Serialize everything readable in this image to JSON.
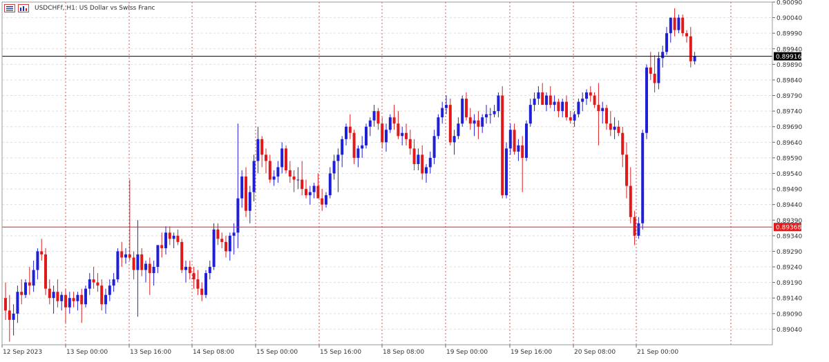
{
  "header": {
    "symbol_line": "USDCHFf, H1:  US Dollar vs Swiss Franc",
    "icons": [
      "chart-menu-icon",
      "chart-properties-icon"
    ]
  },
  "colors": {
    "bull": "#1f1fd6",
    "bear": "#e0191b",
    "price_line_current": "#000000",
    "price_line_marked": "#e0191b",
    "grid_vertical": "#d45050",
    "grid_horizontal": "#dddddd",
    "axis_text": "#333333"
  },
  "chart_data": {
    "type": "candlestick",
    "symbol": "USDCHFf",
    "timeframe": "H1",
    "title": "USDCHFf, H1:  US Dollar vs Swiss Franc",
    "y_axis": {
      "ylim": [
        0.8899,
        0.9009
      ],
      "tick_labels": [
        "0.90090",
        "0.90040",
        "0.89990",
        "0.89940",
        "0.89890",
        "0.89840",
        "0.89790",
        "0.89740",
        "0.89690",
        "0.89640",
        "0.89590",
        "0.89540",
        "0.89490",
        "0.89440",
        "0.89390",
        "0.89340",
        "0.89290",
        "0.89240",
        "0.89190",
        "0.89140",
        "0.89090",
        "0.89040"
      ]
    },
    "x_axis": {
      "tick_labels": [
        "12 Sep 2023",
        "13 Sep 00:00",
        "13 Sep 16:00",
        "14 Sep 08:00",
        "15 Sep 00:00",
        "15 Sep 16:00",
        "18 Sep 08:00",
        "19 Sep 00:00",
        "19 Sep 16:00",
        "20 Sep 08:00",
        "21 Sep 00:00"
      ]
    },
    "price_labels": {
      "current": {
        "value": 0.89916,
        "label": "0.89916"
      },
      "marked": {
        "value": 0.89368,
        "label": "0.89368"
      }
    },
    "grid": true,
    "candles": [
      [
        0.8914,
        0.8919,
        0.8907,
        0.891
      ],
      [
        0.891,
        0.8915,
        0.89,
        0.8907
      ],
      [
        0.8907,
        0.8912,
        0.8902,
        0.8909
      ],
      [
        0.8909,
        0.8918,
        0.8906,
        0.8916
      ],
      [
        0.8916,
        0.892,
        0.8912,
        0.8915
      ],
      [
        0.8915,
        0.892,
        0.8914,
        0.8919
      ],
      [
        0.8919,
        0.8924,
        0.8915,
        0.8918
      ],
      [
        0.8918,
        0.8926,
        0.8916,
        0.8923
      ],
      [
        0.8923,
        0.893,
        0.892,
        0.8929
      ],
      [
        0.8929,
        0.8933,
        0.8926,
        0.8928
      ],
      [
        0.8928,
        0.893,
        0.8915,
        0.8917
      ],
      [
        0.8917,
        0.892,
        0.8912,
        0.8914
      ],
      [
        0.8914,
        0.8918,
        0.8909,
        0.8916
      ],
      [
        0.8916,
        0.892,
        0.8911,
        0.8913
      ],
      [
        0.8913,
        0.8916,
        0.891,
        0.8915
      ],
      [
        0.8915,
        0.8917,
        0.8906,
        0.8911
      ],
      [
        0.8911,
        0.8916,
        0.8909,
        0.8914
      ],
      [
        0.8914,
        0.8916,
        0.8911,
        0.8913
      ],
      [
        0.8913,
        0.8916,
        0.891,
        0.8915
      ],
      [
        0.8915,
        0.8917,
        0.8906,
        0.8912
      ],
      [
        0.8912,
        0.8918,
        0.8911,
        0.8917
      ],
      [
        0.8917,
        0.8922,
        0.8915,
        0.892
      ],
      [
        0.892,
        0.8924,
        0.8917,
        0.8919
      ],
      [
        0.8919,
        0.8922,
        0.8916,
        0.8918
      ],
      [
        0.8918,
        0.892,
        0.891,
        0.8912
      ],
      [
        0.8912,
        0.8917,
        0.8909,
        0.8915
      ],
      [
        0.8915,
        0.892,
        0.8913,
        0.8918
      ],
      [
        0.8918,
        0.8922,
        0.8916,
        0.892
      ],
      [
        0.892,
        0.893,
        0.8919,
        0.8929
      ],
      [
        0.8929,
        0.8932,
        0.8924,
        0.8927
      ],
      [
        0.8927,
        0.893,
        0.8925,
        0.8928
      ],
      [
        0.8928,
        0.8952,
        0.8926,
        0.8927
      ],
      [
        0.8927,
        0.8929,
        0.892,
        0.8923
      ],
      [
        0.8923,
        0.8939,
        0.8908,
        0.8928
      ],
      [
        0.8928,
        0.893,
        0.8921,
        0.8923
      ],
      [
        0.8923,
        0.8926,
        0.8919,
        0.8925
      ],
      [
        0.8925,
        0.8927,
        0.8915,
        0.8922
      ],
      [
        0.8922,
        0.8926,
        0.8918,
        0.8924
      ],
      [
        0.8924,
        0.893,
        0.8922,
        0.8931
      ],
      [
        0.8931,
        0.8935,
        0.8927,
        0.893
      ],
      [
        0.893,
        0.8937,
        0.8928,
        0.8935
      ],
      [
        0.8935,
        0.8937,
        0.8931,
        0.8933
      ],
      [
        0.8933,
        0.8935,
        0.893,
        0.8934
      ],
      [
        0.8934,
        0.8936,
        0.8931,
        0.8932
      ],
      [
        0.8932,
        0.8933,
        0.8922,
        0.8923
      ],
      [
        0.8923,
        0.8926,
        0.8919,
        0.8924
      ],
      [
        0.8924,
        0.8926,
        0.892,
        0.8922
      ],
      [
        0.8922,
        0.8924,
        0.8917,
        0.892
      ],
      [
        0.892,
        0.8923,
        0.8915,
        0.8917
      ],
      [
        0.8917,
        0.8919,
        0.8913,
        0.8915
      ],
      [
        0.8915,
        0.8923,
        0.8914,
        0.8922
      ],
      [
        0.8922,
        0.8926,
        0.892,
        0.8924
      ],
      [
        0.8924,
        0.8938,
        0.8923,
        0.8936
      ],
      [
        0.8936,
        0.8938,
        0.8931,
        0.8933
      ],
      [
        0.8933,
        0.8935,
        0.893,
        0.8932
      ],
      [
        0.8932,
        0.8934,
        0.8927,
        0.8929
      ],
      [
        0.8929,
        0.8935,
        0.8926,
        0.8934
      ],
      [
        0.8934,
        0.8938,
        0.8928,
        0.8935
      ],
      [
        0.8935,
        0.897,
        0.893,
        0.8946
      ],
      [
        0.8946,
        0.8955,
        0.8943,
        0.8953
      ],
      [
        0.8953,
        0.8956,
        0.894,
        0.8942
      ],
      [
        0.8942,
        0.895,
        0.8938,
        0.8948
      ],
      [
        0.8948,
        0.896,
        0.8945,
        0.8958
      ],
      [
        0.8958,
        0.8969,
        0.8954,
        0.8965
      ],
      [
        0.8965,
        0.8966,
        0.8956,
        0.896
      ],
      [
        0.896,
        0.8962,
        0.8954,
        0.8958
      ],
      [
        0.8958,
        0.896,
        0.8951,
        0.8952
      ],
      [
        0.8952,
        0.8955,
        0.895,
        0.8953
      ],
      [
        0.8953,
        0.8958,
        0.8951,
        0.8956
      ],
      [
        0.8956,
        0.8964,
        0.8954,
        0.8962
      ],
      [
        0.8962,
        0.8963,
        0.8954,
        0.8955
      ],
      [
        0.8955,
        0.8958,
        0.8951,
        0.8953
      ],
      [
        0.8953,
        0.8955,
        0.8948,
        0.8952
      ],
      [
        0.8952,
        0.8956,
        0.8949,
        0.8952
      ],
      [
        0.8952,
        0.8958,
        0.8947,
        0.8949
      ],
      [
        0.8949,
        0.8952,
        0.8946,
        0.8947
      ],
      [
        0.8947,
        0.895,
        0.8944,
        0.8948
      ],
      [
        0.8948,
        0.8951,
        0.8946,
        0.895
      ],
      [
        0.895,
        0.8954,
        0.8947,
        0.8946
      ],
      [
        0.8946,
        0.8949,
        0.8942,
        0.8944
      ],
      [
        0.8944,
        0.8948,
        0.8943,
        0.8947
      ],
      [
        0.8947,
        0.8956,
        0.8946,
        0.8954
      ],
      [
        0.8954,
        0.896,
        0.8952,
        0.8958
      ],
      [
        0.8958,
        0.8962,
        0.8948,
        0.896
      ],
      [
        0.896,
        0.8966,
        0.8956,
        0.8965
      ],
      [
        0.8965,
        0.897,
        0.8963,
        0.8969
      ],
      [
        0.8969,
        0.8973,
        0.8965,
        0.8967
      ],
      [
        0.8967,
        0.8968,
        0.8957,
        0.8959
      ],
      [
        0.8959,
        0.8963,
        0.8956,
        0.8962
      ],
      [
        0.8962,
        0.8966,
        0.8959,
        0.8963
      ],
      [
        0.8963,
        0.897,
        0.8962,
        0.8969
      ],
      [
        0.8969,
        0.8972,
        0.8966,
        0.8971
      ],
      [
        0.8971,
        0.8976,
        0.8969,
        0.8974
      ],
      [
        0.8974,
        0.8975,
        0.8968,
        0.897
      ],
      [
        0.897,
        0.8972,
        0.8962,
        0.8964
      ],
      [
        0.8964,
        0.897,
        0.8961,
        0.8968
      ],
      [
        0.8968,
        0.8973,
        0.8967,
        0.8972
      ],
      [
        0.8972,
        0.8976,
        0.8968,
        0.897
      ],
      [
        0.897,
        0.8974,
        0.8965,
        0.8966
      ],
      [
        0.8966,
        0.8969,
        0.8963,
        0.8967
      ],
      [
        0.8967,
        0.897,
        0.8963,
        0.8965
      ],
      [
        0.8965,
        0.8968,
        0.896,
        0.8962
      ],
      [
        0.8962,
        0.8965,
        0.8955,
        0.8957
      ],
      [
        0.8957,
        0.8962,
        0.8955,
        0.896
      ],
      [
        0.896,
        0.8963,
        0.8952,
        0.8954
      ],
      [
        0.8954,
        0.8957,
        0.8951,
        0.8956
      ],
      [
        0.8956,
        0.8961,
        0.8954,
        0.8959
      ],
      [
        0.8959,
        0.8968,
        0.8957,
        0.8966
      ],
      [
        0.8966,
        0.8973,
        0.8965,
        0.8972
      ],
      [
        0.8972,
        0.8977,
        0.897,
        0.8975
      ],
      [
        0.8975,
        0.8979,
        0.8973,
        0.8976
      ],
      [
        0.8976,
        0.8978,
        0.8963,
        0.8964
      ],
      [
        0.8964,
        0.8968,
        0.896,
        0.8966
      ],
      [
        0.8966,
        0.8972,
        0.8965,
        0.897
      ],
      [
        0.897,
        0.8979,
        0.8969,
        0.8978
      ],
      [
        0.8978,
        0.898,
        0.8971,
        0.8972
      ],
      [
        0.8972,
        0.8975,
        0.8968,
        0.897
      ],
      [
        0.897,
        0.8973,
        0.8966,
        0.8971
      ],
      [
        0.8971,
        0.8974,
        0.8965,
        0.8969
      ],
      [
        0.8969,
        0.8973,
        0.8967,
        0.8972
      ],
      [
        0.8972,
        0.8976,
        0.897,
        0.8973
      ],
      [
        0.8973,
        0.8975,
        0.897,
        0.8973
      ],
      [
        0.8973,
        0.8976,
        0.8972,
        0.8974
      ],
      [
        0.8974,
        0.898,
        0.8972,
        0.8979
      ],
      [
        0.8979,
        0.8982,
        0.8946,
        0.8947
      ],
      [
        0.8947,
        0.8964,
        0.8946,
        0.8962
      ],
      [
        0.8962,
        0.897,
        0.896,
        0.8968
      ],
      [
        0.8968,
        0.897,
        0.896,
        0.8961
      ],
      [
        0.8961,
        0.8965,
        0.8958,
        0.8963
      ],
      [
        0.8963,
        0.8966,
        0.8948,
        0.8959
      ],
      [
        0.8959,
        0.8971,
        0.8958,
        0.897
      ],
      [
        0.897,
        0.8978,
        0.8969,
        0.8976
      ],
      [
        0.8976,
        0.898,
        0.8974,
        0.8978
      ],
      [
        0.8978,
        0.8982,
        0.8976,
        0.898
      ],
      [
        0.898,
        0.8983,
        0.8977,
        0.8976
      ],
      [
        0.8976,
        0.898,
        0.8974,
        0.8979
      ],
      [
        0.8979,
        0.8982,
        0.8975,
        0.8976
      ],
      [
        0.8976,
        0.8979,
        0.8974,
        0.8977
      ],
      [
        0.8977,
        0.8978,
        0.8972,
        0.8974
      ],
      [
        0.8974,
        0.8978,
        0.8972,
        0.8977
      ],
      [
        0.8977,
        0.8979,
        0.8971,
        0.8972
      ],
      [
        0.8972,
        0.8974,
        0.897,
        0.8971
      ],
      [
        0.8971,
        0.8974,
        0.8969,
        0.8973
      ],
      [
        0.8973,
        0.8978,
        0.8972,
        0.8977
      ],
      [
        0.8977,
        0.898,
        0.8974,
        0.8978
      ],
      [
        0.8978,
        0.8981,
        0.8976,
        0.898
      ],
      [
        0.898,
        0.8982,
        0.8977,
        0.8979
      ],
      [
        0.8979,
        0.898,
        0.8975,
        0.8976
      ],
      [
        0.8976,
        0.8983,
        0.8963,
        0.8974
      ],
      [
        0.8974,
        0.8977,
        0.897,
        0.8975
      ],
      [
        0.8975,
        0.8976,
        0.8968,
        0.897
      ],
      [
        0.897,
        0.8974,
        0.8966,
        0.8968
      ],
      [
        0.8968,
        0.8972,
        0.8965,
        0.8969
      ],
      [
        0.8969,
        0.8971,
        0.8966,
        0.8967
      ],
      [
        0.8967,
        0.8969,
        0.8956,
        0.896
      ],
      [
        0.896,
        0.8964,
        0.8946,
        0.895
      ],
      [
        0.895,
        0.8956,
        0.8938,
        0.894
      ],
      [
        0.894,
        0.8942,
        0.8931,
        0.8934
      ],
      [
        0.8934,
        0.894,
        0.8933,
        0.8938
      ],
      [
        0.8938,
        0.8968,
        0.8936,
        0.8967
      ],
      [
        0.8967,
        0.8989,
        0.8965,
        0.8988
      ],
      [
        0.8988,
        0.8993,
        0.8984,
        0.8986
      ],
      [
        0.8986,
        0.8992,
        0.898,
        0.8983
      ],
      [
        0.8983,
        0.8993,
        0.8981,
        0.8991
      ],
      [
        0.8991,
        0.8995,
        0.8988,
        0.8993
      ],
      [
        0.8993,
        0.9001,
        0.8992,
        0.8999
      ],
      [
        0.8999,
        0.9004,
        0.8996,
        0.9004
      ],
      [
        0.9004,
        0.9007,
        0.8998,
        0.9
      ],
      [
        0.9,
        0.9005,
        0.8999,
        0.9004
      ],
      [
        0.9004,
        0.9005,
        0.8998,
        0.8999
      ],
      [
        0.8999,
        0.9,
        0.8996,
        0.8998
      ],
      [
        0.8998,
        0.9001,
        0.8988,
        0.899
      ],
      [
        0.899,
        0.8993,
        0.8989,
        0.89916
      ]
    ]
  }
}
